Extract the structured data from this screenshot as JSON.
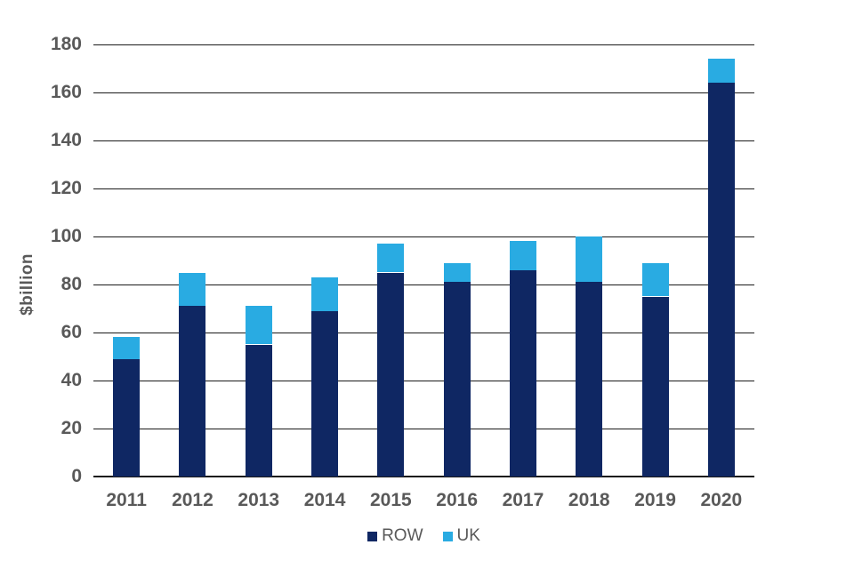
{
  "chart_data": {
    "type": "bar",
    "stacked": true,
    "title": "",
    "xlabel": "",
    "ylabel": "$billion",
    "categories": [
      "2011",
      "2012",
      "2013",
      "2014",
      "2015",
      "2016",
      "2017",
      "2018",
      "2019",
      "2020"
    ],
    "series": [
      {
        "name": "ROW",
        "color": "#0f2763",
        "values": [
          49,
          71,
          55,
          69,
          85,
          81,
          86,
          81,
          75,
          164
        ]
      },
      {
        "name": "UK",
        "color": "#29abe2",
        "values": [
          9,
          14,
          16,
          14,
          12,
          8,
          12,
          19,
          14,
          10
        ]
      }
    ],
    "ylim": [
      0,
      180
    ],
    "ytick_step": 20,
    "grid": "horizontal",
    "legend_position": "bottom"
  },
  "legend": {
    "items": [
      {
        "label": "ROW",
        "color": "#0f2763"
      },
      {
        "label": "UK",
        "color": "#29abe2"
      }
    ]
  },
  "styles": {
    "background": "#ffffff",
    "label_color": "#595959",
    "gridline_color": "#1a1a1a"
  }
}
